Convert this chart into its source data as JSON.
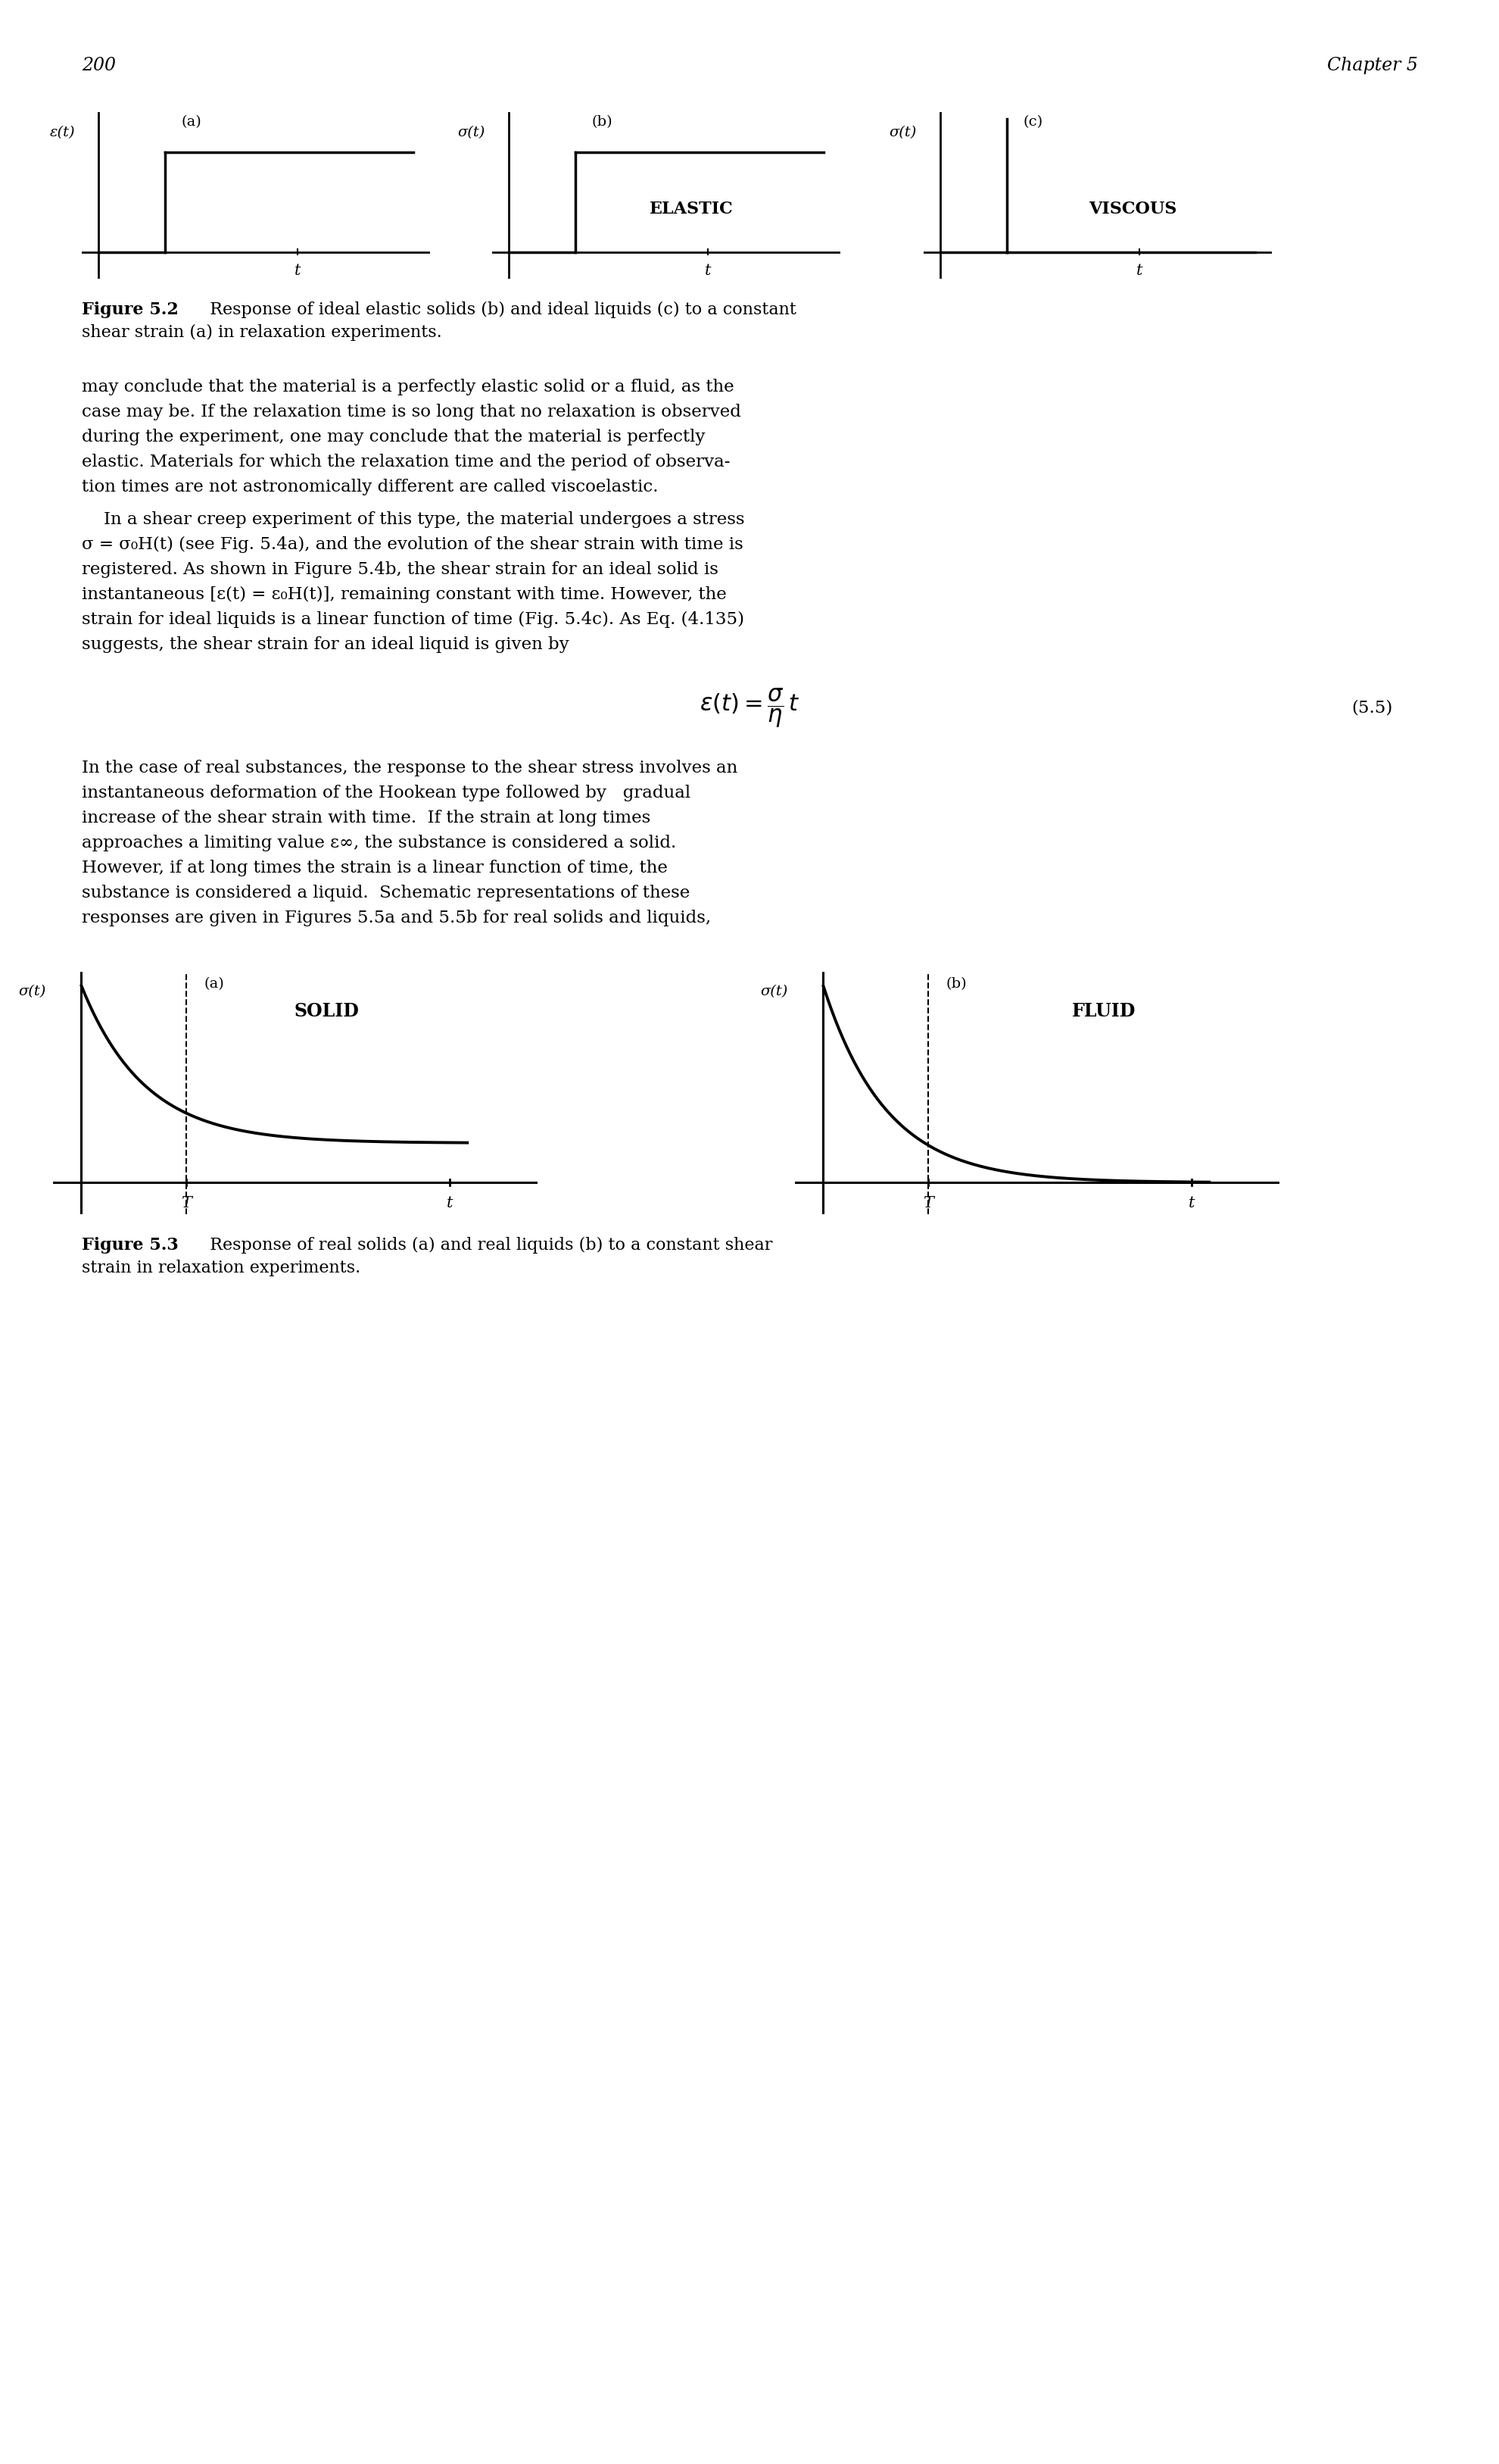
{
  "page_number": "200",
  "chapter_header": "Chapter 5",
  "fig52_label_a": "(a)",
  "fig52_ylabel_a": "ε(t)",
  "fig52_label_b": "(b)",
  "fig52_ylabel_b": "σ(t)",
  "fig52_label_c": "(c)",
  "fig52_ylabel_c": "σ(t)",
  "fig52_elastic_text": "ELASTIC",
  "fig52_viscous_text": "VISCOUS",
  "fig52_t_label": "t",
  "fig52_caption_bold": "Figure 5.2",
  "fig52_caption_line1": "  Response of ideal elastic solids (b) and ideal liquids (c) to a constant",
  "fig52_caption_line2": "shear strain (a) in relaxation experiments.",
  "body1_lines": [
    "may conclude that the material is a perfectly elastic solid or a fluid, as the",
    "case may be. If the relaxation time is so long that no relaxation is observed",
    "during the experiment, one may conclude that the material is perfectly",
    "elastic. Materials for which the relaxation time and the period of observa-",
    "tion times are not astronomically different are called viscoelastic."
  ],
  "body2_lines": [
    "    In a shear creep experiment of this type, the material undergoes a stress",
    "σ = σ₀H(t) (see Fig. 5.4a), and the evolution of the shear strain with time is",
    "registered. As shown in Figure 5.4b, the shear strain for an ideal solid is",
    "instantaneous [ε(t) = ε₀H(t)], remaining constant with time. However, the",
    "strain for ideal liquids is a linear function of time (Fig. 5.4c). As Eq. (4.135)",
    "suggests, the shear strain for an ideal liquid is given by"
  ],
  "eq_number": "(5.5)",
  "body3_lines": [
    "In the case of real substances, the response to the shear stress involves an",
    "instantaneous deformation of the Hookean type followed by   gradual",
    "increase of the shear strain with time.  If the strain at long times",
    "approaches a limiting value ε∞, the substance is considered a solid.",
    "However, if at long times the strain is a linear function of time, the",
    "substance is considered a liquid.  Schematic representations of these",
    "responses are given in Figures 5.5a and 5.5b for real solids and liquids,"
  ],
  "fig53_label_a": "(a)",
  "fig53_label_b": "(b)",
  "fig53_solid_text": "SOLID",
  "fig53_fluid_text": "FLUID",
  "fig53_ylabel_a": "σ(t)",
  "fig53_ylabel_b": "σ(t)",
  "fig53_T_label": "T",
  "fig53_t_label": "t",
  "fig53_caption_bold": "Figure 5.3",
  "fig53_caption_line1": "  Response of real solids (a) and real liquids (b) to a constant shear",
  "fig53_caption_line2": "strain in relaxation experiments.",
  "background_color": "#ffffff",
  "text_color": "#000000",
  "line_color": "#000000"
}
